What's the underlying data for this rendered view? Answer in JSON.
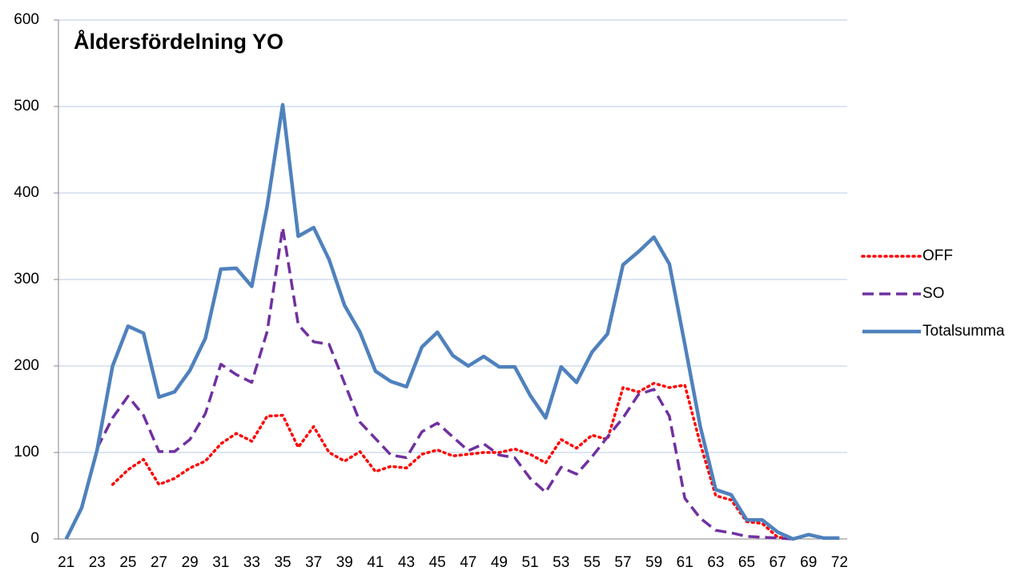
{
  "chart_data": {
    "type": "line",
    "title": "Åldersfördelning YO",
    "categories": [
      "21",
      null,
      "23",
      null,
      "25",
      null,
      "27",
      null,
      "29",
      null,
      "31",
      null,
      "33",
      null,
      "35",
      null,
      "37",
      null,
      "39",
      null,
      "41",
      null,
      "43",
      null,
      "45",
      null,
      "47",
      null,
      "49",
      null,
      "51",
      null,
      "53",
      null,
      "55",
      null,
      "57",
      null,
      "59",
      null,
      "61",
      null,
      "63",
      null,
      "65",
      null,
      "67",
      null,
      "69",
      null,
      "72"
    ],
    "series": [
      {
        "name": "OFF",
        "color": "#ff0000",
        "line_style": "dotted",
        "values": [
          0,
          null,
          null,
          63,
          80,
          92,
          63,
          70,
          82,
          90,
          110,
          122,
          113,
          142,
          143,
          106,
          130,
          100,
          90,
          101,
          78,
          84,
          82,
          98,
          103,
          96,
          98,
          100,
          100,
          104,
          98,
          88,
          115,
          105,
          120,
          115,
          175,
          170,
          180,
          175,
          178,
          110,
          50,
          45,
          20,
          18,
          2,
          0,
          null,
          null,
          null
        ]
      },
      {
        "name": "SO",
        "color": "#7030a0",
        "line_style": "dashed",
        "values": [
          null,
          null,
          105,
          140,
          165,
          143,
          101,
          101,
          115,
          145,
          202,
          190,
          181,
          240,
          360,
          248,
          228,
          225,
          180,
          135,
          116,
          97,
          94,
          124,
          134,
          118,
          102,
          110,
          97,
          94,
          70,
          54,
          83,
          75,
          95,
          118,
          140,
          167,
          173,
          142,
          47,
          24,
          10,
          7,
          3,
          2,
          1,
          0,
          null,
          null,
          null
        ]
      },
      {
        "name": "Totalsumma",
        "color": "#4f81bd",
        "line_style": "solid",
        "values": [
          0,
          36,
          103,
          200,
          246,
          238,
          164,
          170,
          195,
          232,
          312,
          313,
          292,
          385,
          502,
          350,
          360,
          323,
          270,
          239,
          194,
          182,
          176,
          222,
          239,
          212,
          200,
          211,
          199,
          199,
          166,
          140,
          199,
          181,
          216,
          237,
          317,
          332,
          349,
          318,
          225,
          130,
          57,
          51,
          22,
          22,
          8,
          0,
          5,
          1,
          1
        ]
      }
    ],
    "ylim": [
      0,
      600
    ],
    "yticks": [
      0,
      100,
      200,
      300,
      400,
      500,
      600
    ],
    "grid": true,
    "legend": "right"
  }
}
